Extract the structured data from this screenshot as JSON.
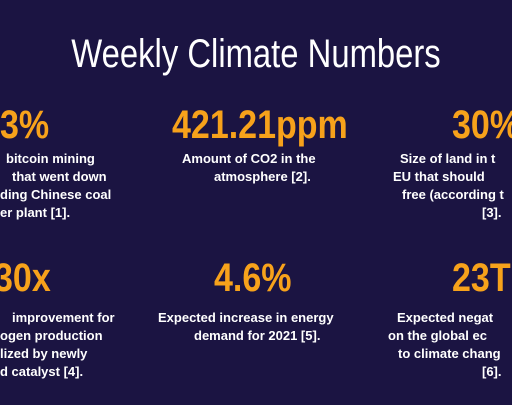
{
  "title": "Weekly Climate Numbers",
  "stats": [
    {
      "value": "3%",
      "lines": [
        "bitcoin mining",
        "that went down",
        "ding Chinese coal",
        "er plant [1]."
      ]
    },
    {
      "value": "421.21ppm",
      "lines": [
        "Amount of CO2 in the",
        "atmosphere [2]."
      ]
    },
    {
      "value": "30%",
      "lines": [
        "Size of land in t",
        "EU that should",
        "free (according t",
        "[3]."
      ]
    },
    {
      "value": "30x",
      "lines": [
        "improvement for",
        "ogen production",
        "lized by newly",
        "d catalyst [4]."
      ]
    },
    {
      "value": "4.6%",
      "lines": [
        "Expected increase in energy",
        "demand for 2021 [5]."
      ]
    },
    {
      "value": "23T",
      "lines": [
        "Expected negat",
        "on the global ec",
        "to climate chang",
        "[6]."
      ]
    }
  ]
}
